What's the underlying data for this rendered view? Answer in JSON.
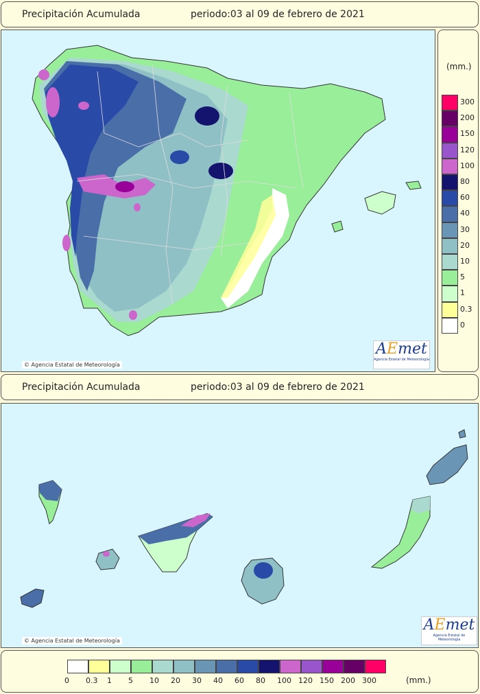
{
  "panel1": {
    "title": "Precipitación Acumulada",
    "period": "periodo:03 al 09 de febrero de 2021",
    "copyright": "Agencia Estatal de Meteorología"
  },
  "panel2": {
    "title": "Precipitación Acumulada",
    "period": "periodo:03 al 09 de febrero de 2021",
    "copyright": "Agencia Estatal de Meteorología"
  },
  "logo": {
    "word_a": "A",
    "word_e": "E",
    "word_rest": "met",
    "subtitle": "Agencia Estatal de Meteorología"
  },
  "legend": {
    "units": "(mm.)",
    "bins": [
      {
        "label": "0",
        "color": "#ffffff"
      },
      {
        "label": "0.3",
        "color": "#ffff99"
      },
      {
        "label": "1",
        "color": "#ccffcc"
      },
      {
        "label": "5",
        "color": "#99ee99"
      },
      {
        "label": "10",
        "color": "#a9d9cf"
      },
      {
        "label": "20",
        "color": "#8fc0c6"
      },
      {
        "label": "30",
        "color": "#6a95b5"
      },
      {
        "label": "40",
        "color": "#4a6ea8"
      },
      {
        "label": "60",
        "color": "#2a4aa8"
      },
      {
        "label": "80",
        "color": "#14146e"
      },
      {
        "label": "100",
        "color": "#cc66cc"
      },
      {
        "label": "120",
        "color": "#9955cc"
      },
      {
        "label": "150",
        "color": "#990099"
      },
      {
        "label": "200",
        "color": "#660066"
      },
      {
        "label": "300",
        "color": "#ff0066"
      }
    ]
  },
  "colors": {
    "sea": "#d9f6ff",
    "panel": "#fffde0"
  }
}
